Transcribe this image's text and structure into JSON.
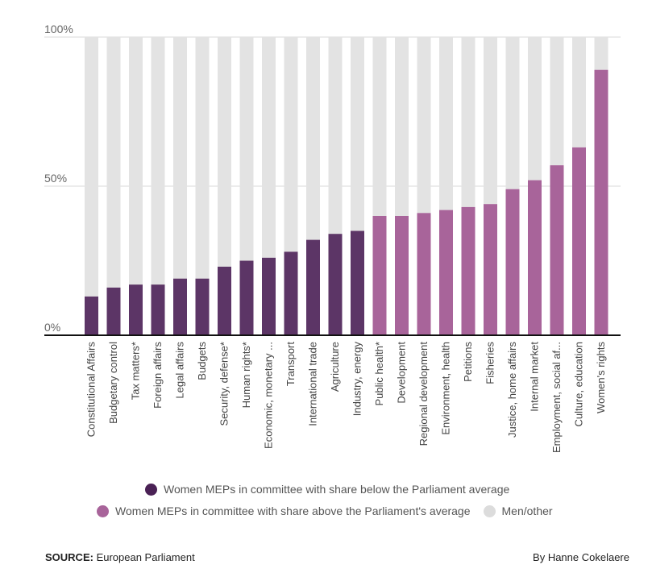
{
  "chart_data": {
    "type": "bar",
    "stacked": true,
    "categories": [
      "Constitutional Affairs",
      "Budgetary control",
      "Tax matters*",
      "Foreign affairs",
      "Legal affairs",
      "Budgets",
      "Security, defense*",
      "Human rights*",
      "Economic, monetary ...",
      "Transport",
      "International trade",
      "Agriculture",
      "Industry, energy",
      "Public health*",
      "Development",
      "Regional development",
      "Environment, health",
      "Petitions",
      "Fisheries",
      "Justice, home affairs",
      "Internal market",
      "Employment, social af...",
      "Culture, education",
      "Women's rights"
    ],
    "series": [
      {
        "name": "Women MEPs in committee",
        "values": [
          13,
          16,
          17,
          17,
          19,
          19,
          23,
          25,
          26,
          28,
          32,
          34,
          35,
          40,
          40,
          41,
          42,
          43,
          44,
          49,
          52,
          57,
          63,
          89
        ]
      },
      {
        "name": "Men/other",
        "values": [
          87,
          84,
          83,
          83,
          81,
          81,
          77,
          75,
          74,
          72,
          68,
          66,
          65,
          60,
          60,
          59,
          58,
          57,
          56,
          51,
          48,
          43,
          37,
          11
        ]
      }
    ],
    "below_average_count": 13,
    "ylim": [
      0,
      100
    ],
    "yticks": [
      {
        "value": 0,
        "label": "0%"
      },
      {
        "value": 50,
        "label": "50%"
      },
      {
        "value": 100,
        "label": "100%"
      }
    ],
    "grid": true,
    "colors": {
      "below": "#5c3566",
      "above": "#a8649a",
      "rest": "#e3e3e3",
      "grid": "#d9d9d9",
      "axis": "#111111"
    }
  },
  "legend": {
    "below_label": "Women MEPs in committee with share below the Parliament average",
    "above_label": "Women MEPs in committee with share above the Parliament's average",
    "rest_label": "Men/other"
  },
  "footer": {
    "source_label": "SOURCE:",
    "source_text": " European Parliament",
    "credit": "By Hanne Cokelaere"
  }
}
